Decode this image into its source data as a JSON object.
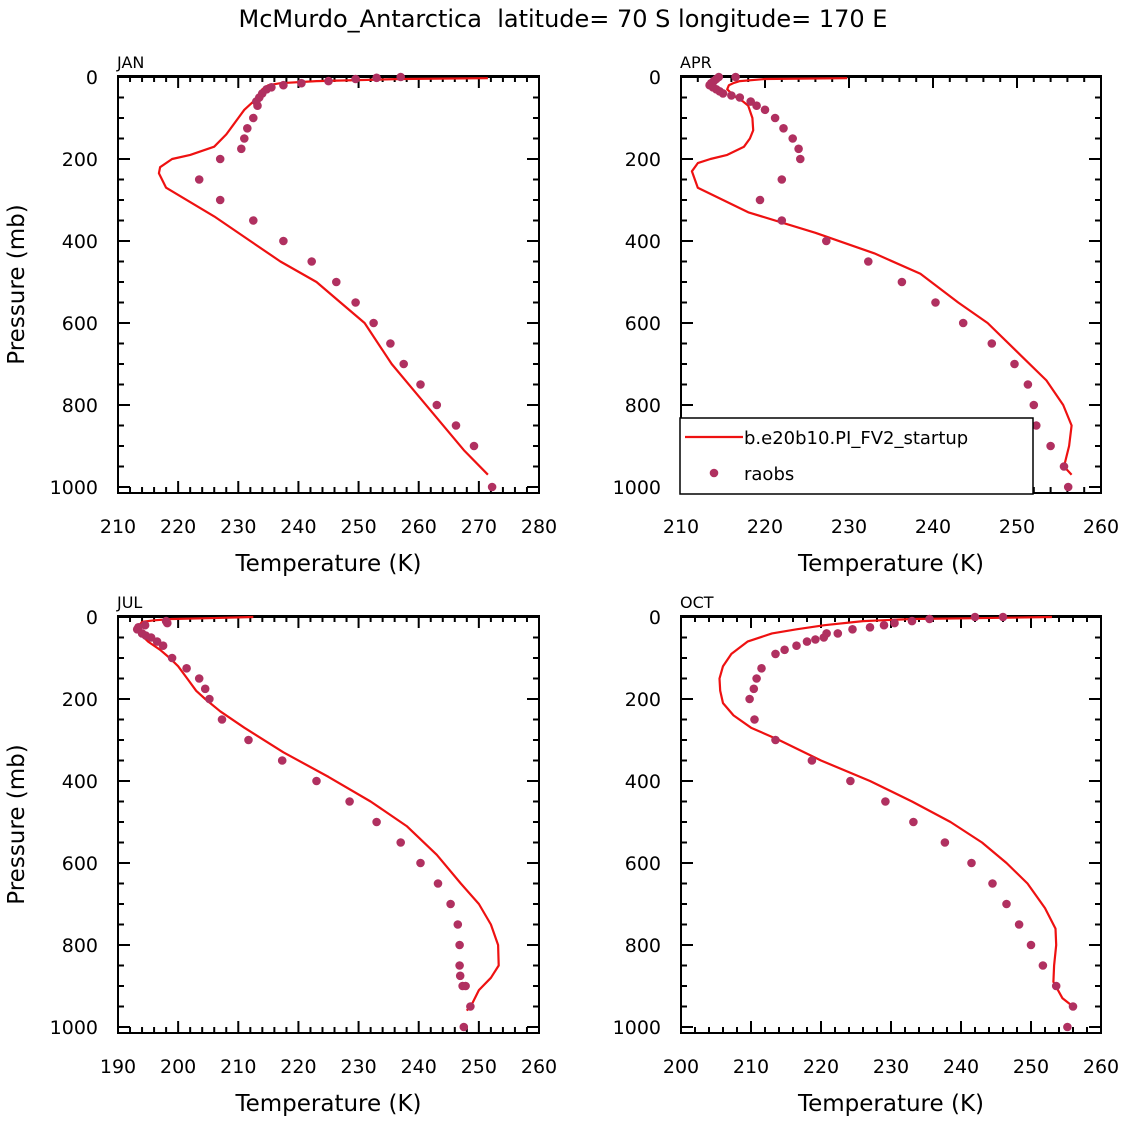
{
  "figure": {
    "title": "McMurdo_Antarctica  latitude= 70 S longitude= 170 E"
  },
  "legend": {
    "model_label": "b.e20b10.PI_FV2_startup",
    "obs_label": "raobs"
  },
  "colors": {
    "model": "#ee1111",
    "obs": "#b03060",
    "axis": "#000000"
  },
  "chart_data": [
    {
      "type": "line",
      "panel": "JAN",
      "xlabel": "Temperature (K)",
      "ylabel": "Pressure (mb)",
      "xlim": [
        210,
        280
      ],
      "ylim": [
        0,
        1000
      ],
      "xticks": [
        210,
        220,
        230,
        240,
        250,
        260,
        270,
        280
      ],
      "yticks": [
        0,
        200,
        400,
        600,
        800,
        1000
      ],
      "series": [
        {
          "name": "b.e20b10.PI_FV2_startup",
          "t": [
            271.5,
            257,
            243,
            237,
            235,
            234,
            233.5,
            233,
            232.5,
            231,
            230,
            229,
            228,
            226,
            222,
            219,
            217,
            216.8,
            218,
            226,
            232,
            237,
            243,
            247,
            251,
            255.5,
            259.5,
            263.5,
            267.5,
            271.5
          ],
          "p": [
            3,
            5,
            10,
            15,
            20,
            30,
            40,
            50,
            60,
            80,
            100,
            120,
            140,
            170,
            190,
            200,
            220,
            235,
            270,
            340,
            400,
            450,
            500,
            550,
            600,
            700,
            770,
            840,
            910,
            970
          ]
        },
        {
          "name": "raobs",
          "t": [
            257,
            253,
            249.5,
            245,
            240.5,
            237.5,
            235.5,
            234.7,
            234,
            233.5,
            233,
            233.2,
            232.5,
            231.5,
            231,
            230.5,
            227,
            223.5,
            227,
            232.5,
            237.5,
            242.2,
            246.3,
            249.5,
            252.5,
            255.3,
            257.5,
            260.3,
            263,
            266.2,
            269.2,
            272.2
          ],
          "p": [
            0,
            2,
            5,
            10,
            15,
            20,
            25,
            30,
            40,
            50,
            60,
            70,
            100,
            125,
            150,
            175,
            200,
            250,
            300,
            350,
            400,
            450,
            500,
            550,
            600,
            650,
            700,
            750,
            800,
            850,
            900,
            1000
          ]
        }
      ]
    },
    {
      "type": "line",
      "panel": "APR",
      "xlabel": "Temperature (K)",
      "ylabel": "",
      "xlim": [
        210,
        260
      ],
      "ylim": [
        0,
        1000
      ],
      "xticks": [
        210,
        220,
        230,
        240,
        250,
        260
      ],
      "yticks": [
        0,
        200,
        400,
        600,
        800,
        1000
      ],
      "series": [
        {
          "name": "b.e20b10.PI_FV2_startup",
          "t": [
            229.8,
            220,
            217,
            216.2,
            215.7,
            215.5,
            216,
            216.6,
            217.4,
            218,
            218.5,
            218.6,
            218.2,
            217.5,
            215.5,
            213.5,
            212,
            211.3,
            212,
            218,
            226,
            233,
            238.5,
            243,
            246.5,
            250.5,
            253.5,
            255.5,
            256.5,
            256.2,
            255.6,
            256.5
          ],
          "p": [
            3,
            5,
            10,
            15,
            20,
            30,
            40,
            50,
            60,
            70,
            100,
            130,
            150,
            170,
            190,
            200,
            210,
            230,
            270,
            330,
            380,
            430,
            480,
            550,
            600,
            680,
            740,
            800,
            850,
            900,
            950,
            970
          ]
        },
        {
          "name": "raobs",
          "t": [
            216.5,
            214.5,
            214.2,
            213.9,
            213.6,
            213.4,
            213.8,
            214.2,
            214.6,
            215,
            216,
            217,
            218.3,
            219,
            220,
            221.2,
            222.2,
            223.3,
            224,
            224.2,
            222,
            219.4,
            222,
            227.3,
            232.3,
            236.3,
            240.3,
            243.6,
            247,
            249.7,
            251.3,
            252,
            252.3,
            254,
            255.6,
            256.1
          ],
          "p": [
            0,
            0,
            5,
            10,
            15,
            20,
            25,
            30,
            35,
            40,
            45,
            50,
            60,
            70,
            80,
            100,
            125,
            150,
            175,
            200,
            250,
            300,
            350,
            400,
            450,
            500,
            550,
            600,
            650,
            700,
            750,
            800,
            850,
            900,
            950,
            1000
          ]
        }
      ]
    },
    {
      "type": "line",
      "panel": "JUL",
      "xlabel": "Temperature (K)",
      "ylabel": "Pressure (mb)",
      "xlim": [
        190,
        260
      ],
      "ylim": [
        0,
        1000
      ],
      "xticks": [
        190,
        200,
        210,
        220,
        230,
        240,
        250,
        260
      ],
      "yticks": [
        0,
        200,
        400,
        600,
        800,
        1000
      ],
      "series": [
        {
          "name": "b.e20b10.PI_FV2_startup",
          "t": [
            212.5,
            205,
            199,
            196,
            194,
            193.5,
            193.3,
            193.6,
            195,
            197,
            198.6,
            200,
            201.5,
            203,
            204.5,
            207,
            211,
            217.5,
            225,
            232,
            238,
            243,
            247,
            250,
            252,
            253.2,
            253.3,
            252,
            250,
            249,
            248
          ],
          "p": [
            0,
            3,
            5,
            8,
            12,
            20,
            30,
            40,
            60,
            80,
            100,
            120,
            150,
            180,
            200,
            230,
            270,
            330,
            390,
            450,
            510,
            580,
            650,
            700,
            750,
            800,
            850,
            880,
            910,
            940,
            960
          ]
        },
        {
          "name": "raobs",
          "t": [
            198,
            198.2,
            194.5,
            193.4,
            193.2,
            194,
            194.6,
            195.5,
            196.5,
            197.5,
            199,
            201.4,
            203.5,
            204.5,
            205.2,
            207.3,
            211.7,
            217.3,
            223,
            228.5,
            233,
            237,
            240.3,
            243.2,
            245.3,
            246.5,
            246.8,
            246.8,
            246.9,
            247.3,
            247.8,
            248.6,
            247.5
          ],
          "p": [
            10,
            15,
            20,
            25,
            30,
            40,
            45,
            50,
            60,
            70,
            100,
            125,
            150,
            175,
            200,
            250,
            300,
            350,
            400,
            450,
            500,
            550,
            600,
            650,
            700,
            750,
            800,
            850,
            875,
            900,
            900,
            950,
            1000
          ]
        }
      ]
    },
    {
      "type": "line",
      "panel": "OCT",
      "xlabel": "Temperature (K)",
      "ylabel": "",
      "xlim": [
        200,
        260
      ],
      "ylim": [
        0,
        1000
      ],
      "xticks": [
        200,
        210,
        220,
        230,
        240,
        250,
        260
      ],
      "yticks": [
        0,
        200,
        400,
        600,
        800,
        1000
      ],
      "series": [
        {
          "name": "b.e20b10.PI_FV2_startup",
          "t": [
            253,
            242,
            233,
            226,
            220.5,
            216.5,
            213,
            209.5,
            207.2,
            206,
            205.5,
            205.6,
            206,
            207.5,
            210,
            214,
            220,
            227,
            233,
            238.5,
            243,
            246.5,
            249.5,
            252,
            253.5,
            253.6,
            253.3,
            253.2,
            254.5,
            256
          ],
          "p": [
            0,
            3,
            5,
            10,
            20,
            30,
            40,
            60,
            90,
            120,
            150,
            180,
            210,
            240,
            270,
            300,
            350,
            400,
            450,
            500,
            550,
            600,
            650,
            710,
            760,
            800,
            850,
            890,
            930,
            950
          ]
        },
        {
          "name": "raobs",
          "t": [
            246,
            242,
            235.5,
            233,
            230.5,
            229,
            227,
            224.5,
            222.4,
            220.8,
            220.4,
            219.2,
            218,
            216.5,
            214.8,
            213.5,
            211.5,
            210.8,
            210.4,
            209.8,
            210.5,
            213.5,
            218.7,
            224.2,
            229.2,
            233.2,
            237.7,
            241.5,
            244.5,
            246.5,
            248.3,
            250,
            251.7,
            253.6,
            256,
            255.2
          ],
          "p": [
            0,
            0,
            5,
            10,
            15,
            20,
            25,
            30,
            40,
            40,
            50,
            55,
            60,
            70,
            80,
            90,
            125,
            150,
            175,
            200,
            250,
            300,
            350,
            400,
            450,
            500,
            550,
            600,
            650,
            700,
            750,
            800,
            850,
            900,
            950,
            1000
          ]
        }
      ]
    }
  ]
}
